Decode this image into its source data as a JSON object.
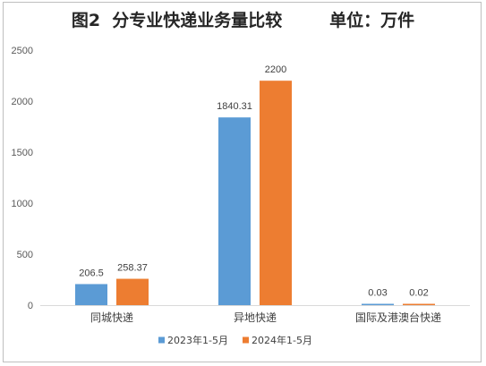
{
  "chart_data": {
    "type": "bar",
    "title": "图2  分专业快递业务量比较        单位：万件",
    "categories": [
      "同城快递",
      "异地快递",
      "国际及港澳台快递"
    ],
    "series": [
      {
        "name": "2023年1-5月",
        "values": [
          206.5,
          1840.31,
          0.03
        ],
        "value_labels": [
          "206.5",
          "1840.31",
          "0.03"
        ],
        "color": "#5b9bd5"
      },
      {
        "name": "2024年1-5月",
        "values": [
          258.37,
          2200,
          0.02
        ],
        "value_labels": [
          "258.37",
          "2200",
          "0.02"
        ],
        "color": "#ed7d31"
      }
    ],
    "ylim": [
      0,
      2500
    ],
    "yticks": [
      "0",
      "500",
      "1000",
      "1500",
      "2000",
      "2500"
    ],
    "xlabel": "",
    "ylabel": "",
    "grid": false,
    "legend_position": "bottom"
  }
}
